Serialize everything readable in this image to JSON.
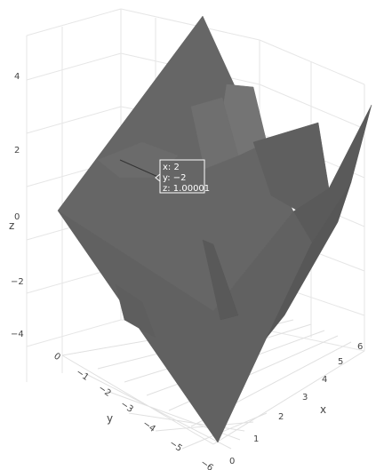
{
  "chart_data": {
    "type": "surface",
    "title": "",
    "axes": {
      "x": {
        "label": "x",
        "ticks": [
          "0",
          "1",
          "2",
          "3",
          "4",
          "5",
          "6"
        ],
        "range": [
          0,
          6
        ]
      },
      "y": {
        "label": "y",
        "ticks": [
          "0",
          "−1",
          "−2",
          "−3",
          "−4",
          "−5",
          "−6"
        ],
        "range": [
          -6,
          0
        ]
      },
      "z": {
        "label": "z",
        "ticks": [
          "−4",
          "−2",
          "0",
          "2",
          "4"
        ],
        "range": [
          -4,
          4
        ]
      }
    },
    "grid": true,
    "surface_color": "#666666",
    "tooltip": {
      "x_text": "x: 2",
      "y_text": "y: −2",
      "z_text": "z: 1.00001",
      "point": {
        "x": 2,
        "y": -2,
        "z": 1.00001
      }
    }
  }
}
